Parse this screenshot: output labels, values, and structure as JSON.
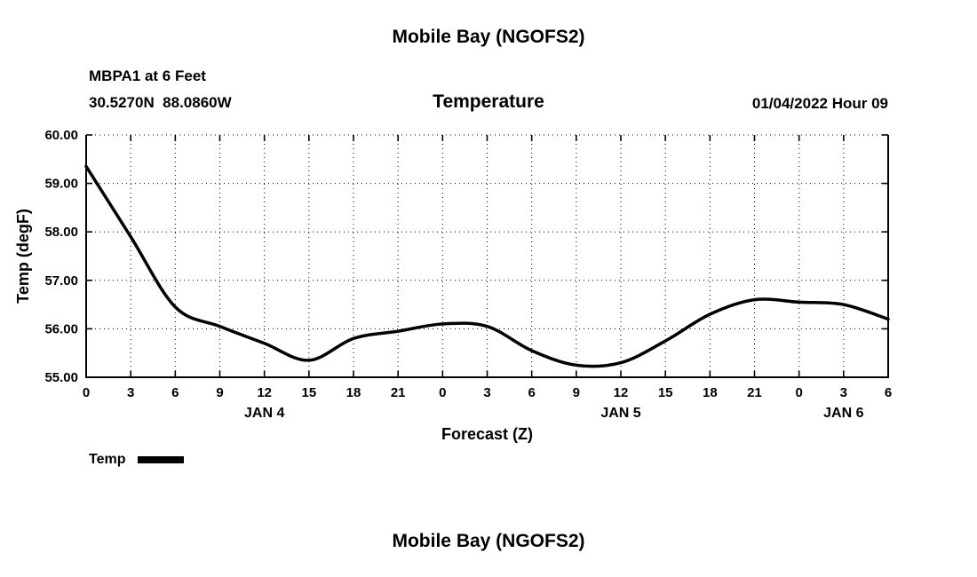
{
  "page": {
    "title": "Mobile Bay (NGOFS2)",
    "footer_title": "Mobile Bay (NGOFS2)"
  },
  "header": {
    "station": "MBPA1 at 6 Feet",
    "coordinates": "30.5270N  88.0860W",
    "subtitle": "Temperature",
    "datetime": "01/04/2022 Hour 09"
  },
  "legend": {
    "label": "Temp"
  },
  "chart_data": {
    "type": "line",
    "title": "Temperature",
    "xlabel": "Forecast (Z)",
    "ylabel": "Temp (degF)",
    "ylim": [
      55,
      60
    ],
    "y_ticks": [
      {
        "value": 55,
        "label": "55.00"
      },
      {
        "value": 56,
        "label": "56.00"
      },
      {
        "value": 57,
        "label": "57.00"
      },
      {
        "value": 58,
        "label": "58.00"
      },
      {
        "value": 59,
        "label": "59.00"
      },
      {
        "value": 60,
        "label": "60.00"
      }
    ],
    "x_range": [
      0,
      54
    ],
    "x_ticks": [
      {
        "value": 0,
        "label": "0"
      },
      {
        "value": 3,
        "label": "3"
      },
      {
        "value": 6,
        "label": "6"
      },
      {
        "value": 9,
        "label": "9"
      },
      {
        "value": 12,
        "label": "12"
      },
      {
        "value": 15,
        "label": "15"
      },
      {
        "value": 18,
        "label": "18"
      },
      {
        "value": 21,
        "label": "21"
      },
      {
        "value": 24,
        "label": "0"
      },
      {
        "value": 27,
        "label": "3"
      },
      {
        "value": 30,
        "label": "6"
      },
      {
        "value": 33,
        "label": "9"
      },
      {
        "value": 36,
        "label": "12"
      },
      {
        "value": 39,
        "label": "15"
      },
      {
        "value": 42,
        "label": "18"
      },
      {
        "value": 45,
        "label": "21"
      },
      {
        "value": 48,
        "label": "0"
      },
      {
        "value": 51,
        "label": "3"
      },
      {
        "value": 54,
        "label": "6"
      }
    ],
    "day_labels": [
      {
        "position": 12,
        "label": "JAN 4"
      },
      {
        "position": 36,
        "label": "JAN 5"
      },
      {
        "position": 51,
        "label": "JAN 6"
      }
    ],
    "grid": true,
    "legend_position": "bottom-left",
    "line_color": "#000000",
    "line_width": 3.5,
    "series": [
      {
        "name": "Temp",
        "x": [
          0,
          3,
          6,
          9,
          12,
          15,
          18,
          21,
          24,
          27,
          30,
          33,
          36,
          39,
          42,
          45,
          48,
          51,
          54
        ],
        "values": [
          59.35,
          57.9,
          56.45,
          56.05,
          55.7,
          55.35,
          55.8,
          55.95,
          56.1,
          56.05,
          55.55,
          55.25,
          55.3,
          55.75,
          56.3,
          56.6,
          56.55,
          56.5,
          56.2
        ]
      }
    ]
  }
}
